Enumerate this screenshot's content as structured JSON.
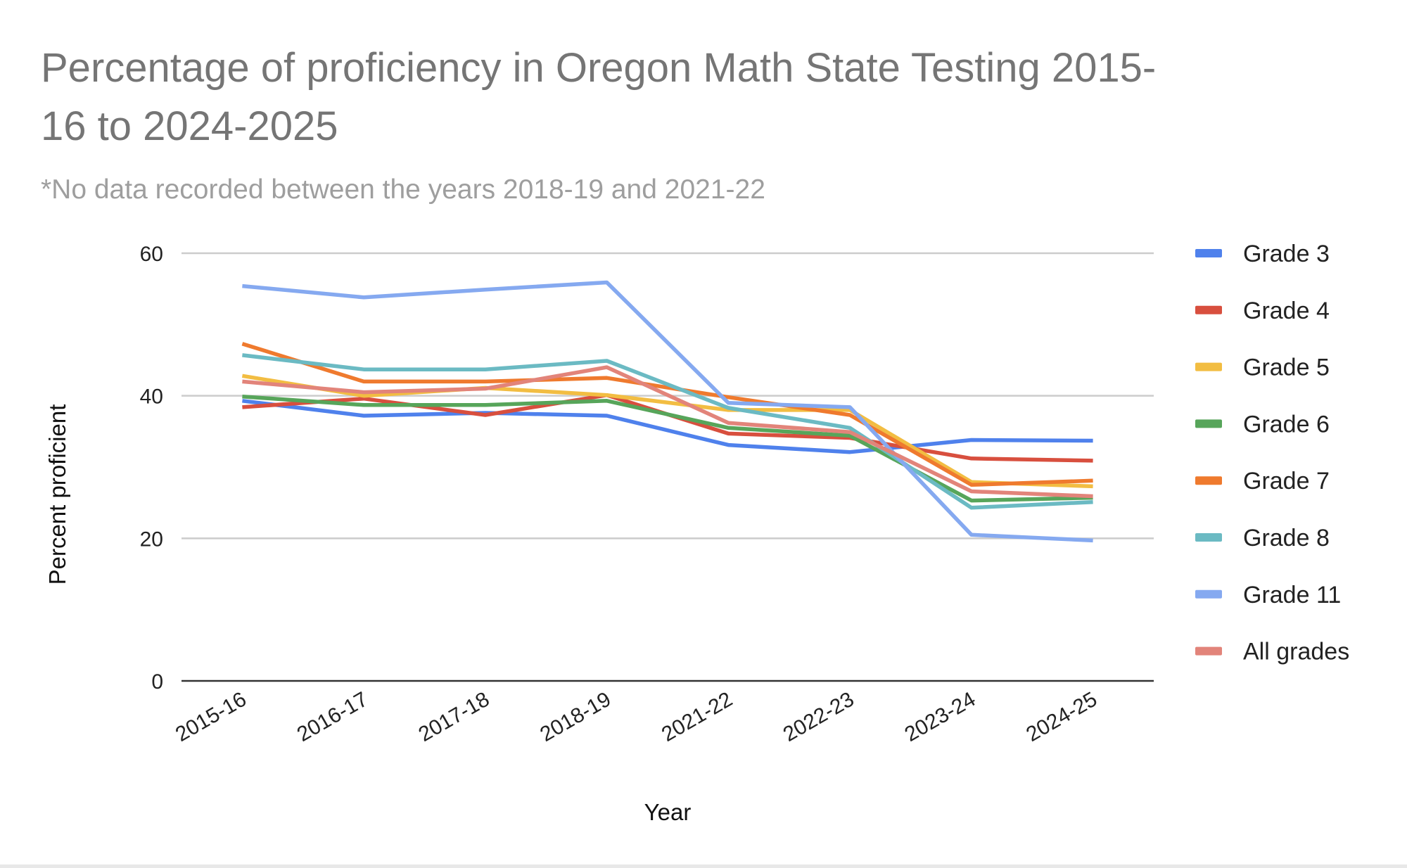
{
  "chart_data": {
    "type": "line",
    "title": "Percentage of proficiency in Oregon Math State Testing 2015-16 to 2024-2025",
    "title_lines": [
      "Percentage of proficiency in Oregon Math State Testing 2015-",
      "16 to 2024-2025"
    ],
    "subtitle": "*No data recorded between the years 2018-19 and 2021-22",
    "xlabel": "Year",
    "ylabel": "Percent proficient",
    "categories": [
      "2015-16",
      "2016-17",
      "2017-18",
      "2018-19",
      "2021-22",
      "2022-23",
      "2023-24",
      "2024-25"
    ],
    "ylim": [
      0,
      60
    ],
    "yticks": [
      0,
      20,
      40,
      60
    ],
    "grid": true,
    "legend": "right",
    "series": [
      {
        "name": "Grade 3",
        "color": "#4f81ec",
        "values": [
          39.3,
          37.2,
          37.6,
          37.2,
          33.1,
          32.1,
          33.8,
          33.7
        ]
      },
      {
        "name": "Grade 4",
        "color": "#d84f3e",
        "values": [
          38.4,
          39.6,
          37.3,
          40.1,
          34.7,
          34.1,
          31.2,
          30.9
        ]
      },
      {
        "name": "Grade 5",
        "color": "#f2bd42",
        "values": [
          42.8,
          40.0,
          41.1,
          40.1,
          38.0,
          38.0,
          27.9,
          27.3
        ]
      },
      {
        "name": "Grade 6",
        "color": "#57a55a",
        "values": [
          39.9,
          38.7,
          38.7,
          39.3,
          35.5,
          34.4,
          25.3,
          25.7
        ]
      },
      {
        "name": "Grade 7",
        "color": "#ef7a2e",
        "values": [
          47.3,
          42.0,
          42.0,
          42.5,
          39.8,
          37.3,
          27.5,
          28.1
        ]
      },
      {
        "name": "Grade 8",
        "color": "#6bbac3",
        "values": [
          45.7,
          43.7,
          43.7,
          44.9,
          38.3,
          35.5,
          24.3,
          25.1
        ]
      },
      {
        "name": "Grade 11",
        "color": "#85a9f0",
        "values": [
          55.4,
          53.8,
          54.9,
          55.9,
          39.0,
          38.4,
          20.5,
          19.7
        ]
      },
      {
        "name": "All grades",
        "color": "#e2847a",
        "values": [
          42.0,
          40.5,
          41.0,
          44.0,
          36.2,
          34.9,
          26.6,
          25.9
        ]
      }
    ]
  }
}
